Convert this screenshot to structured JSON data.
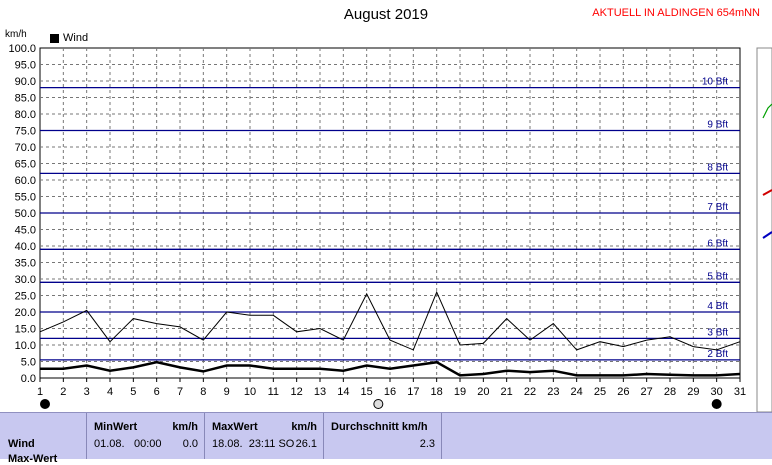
{
  "header": {
    "title": "August 2019",
    "banner": "AKTUELL IN ALDINGEN 654mNN"
  },
  "legend": {
    "label": "Wind"
  },
  "chart_data": {
    "type": "line",
    "ylabel": "km/h",
    "ylim": [
      0,
      100
    ],
    "y_ticks": [
      "0.0",
      "5.0",
      "10.0",
      "15.0",
      "20.0",
      "25.0",
      "30.0",
      "35.0",
      "40.0",
      "45.0",
      "50.0",
      "55.0",
      "60.0",
      "65.0",
      "70.0",
      "75.0",
      "80.0",
      "85.0",
      "90.0",
      "95.0",
      "100.0"
    ],
    "x_ticks": [
      "1",
      "2",
      "3",
      "4",
      "5",
      "6",
      "7",
      "8",
      "9",
      "10",
      "11",
      "12",
      "13",
      "14",
      "15",
      "16",
      "17",
      "18",
      "19",
      "20",
      "21",
      "22",
      "23",
      "24",
      "25",
      "26",
      "27",
      "28",
      "29",
      "30",
      "31"
    ],
    "xlim": [
      1,
      31
    ],
    "grid": true,
    "legend_position": "top-left",
    "beaufort": [
      {
        "label": "2 Bft",
        "value": 5.5
      },
      {
        "label": "3 Bft",
        "value": 12
      },
      {
        "label": "4 Bft",
        "value": 20
      },
      {
        "label": "5 Bft",
        "value": 29
      },
      {
        "label": "6 Bft",
        "value": 39
      },
      {
        "label": "7 Bft",
        "value": 50
      },
      {
        "label": "8 Bft",
        "value": 62
      },
      {
        "label": "9 Bft",
        "value": 75
      },
      {
        "label": "10 Bft",
        "value": 88
      }
    ],
    "series": [
      {
        "name": "Wind",
        "color": "#000000",
        "x": [
          1,
          2,
          3,
          4,
          5,
          6,
          7,
          8,
          9,
          10,
          11,
          12,
          13,
          14,
          15,
          16,
          17,
          18,
          19,
          20,
          21,
          22,
          23,
          24,
          25,
          26,
          27,
          28,
          29,
          30,
          31
        ],
        "values": [
          2.8,
          2.8,
          3.8,
          2.2,
          3.2,
          4.8,
          3.2,
          2.0,
          3.8,
          3.8,
          2.8,
          2.8,
          2.8,
          2.2,
          3.8,
          2.8,
          3.8,
          4.8,
          0.8,
          1.2,
          2.2,
          1.8,
          2.2,
          0.8,
          0.8,
          0.8,
          1.2,
          1.0,
          0.8,
          0.8,
          1.2
        ]
      },
      {
        "name": "",
        "color": "#000000",
        "x": [
          1,
          2,
          3,
          4,
          5,
          6,
          7,
          8,
          9,
          10,
          11,
          12,
          13,
          14,
          15,
          16,
          17,
          18,
          19,
          20,
          21,
          22,
          23,
          24,
          25,
          26,
          27,
          28,
          29,
          30,
          31
        ],
        "values": [
          14,
          17,
          20.5,
          11,
          18,
          16.5,
          15.5,
          11.5,
          20,
          19,
          19,
          14,
          15,
          11.5,
          25.5,
          11.5,
          8.5,
          26,
          10,
          10.5,
          18,
          11.5,
          16.5,
          8.5,
          11,
          9.5,
          11.5,
          12.5,
          9.5,
          8.5,
          11
        ]
      }
    ],
    "moon_phases": [
      {
        "day": 1,
        "phase": "new"
      },
      {
        "day": 15.5,
        "phase": "full"
      },
      {
        "day": 30,
        "phase": "new"
      }
    ]
  },
  "stats": {
    "row_label": "Wind",
    "row_label_2": "Max-Wert",
    "min": {
      "header": "MinWert",
      "unit": "km/h",
      "date": "01.08.",
      "time": "00:00",
      "value": "0.0"
    },
    "max": {
      "header": "MaxWert",
      "unit": "km/h",
      "datetime": "18.08.  23:11 SO",
      "value": "26.1"
    },
    "avg": {
      "header": "Durchschnitt km/h",
      "value": "2.3"
    }
  }
}
